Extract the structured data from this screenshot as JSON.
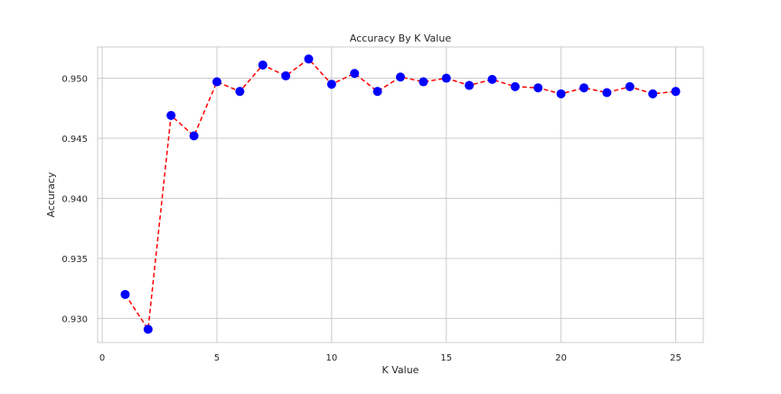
{
  "chart_data": {
    "type": "line",
    "title": "Accuracy By K Value",
    "xlabel": "K Value",
    "ylabel": "Accuracy",
    "xlim": [
      -0.2,
      26.2
    ],
    "ylim": [
      0.928,
      0.9526
    ],
    "xticks": [
      0,
      5,
      10,
      15,
      20,
      25
    ],
    "yticks": [
      0.93,
      0.935,
      0.94,
      0.945,
      0.95
    ],
    "ytick_labels": [
      "0.930",
      "0.935",
      "0.940",
      "0.945",
      "0.950"
    ],
    "grid": true,
    "series": [
      {
        "x": [
          1,
          2,
          3,
          4,
          5,
          6,
          7,
          8,
          9,
          10,
          11,
          12,
          13,
          14,
          15,
          16,
          17,
          18,
          19,
          20,
          21,
          22,
          23,
          24,
          25
        ],
        "values": [
          0.932,
          0.9291,
          0.9469,
          0.9452,
          0.9497,
          0.9489,
          0.9511,
          0.9502,
          0.9516,
          0.9495,
          0.9504,
          0.9489,
          0.9501,
          0.9497,
          0.95,
          0.9494,
          0.9499,
          0.9493,
          0.9492,
          0.9487,
          0.9492,
          0.9488,
          0.9493,
          0.9487,
          0.9489
        ],
        "line_color": "#ff0000",
        "line_style": "dashed",
        "marker_color": "#0000ff"
      }
    ]
  }
}
